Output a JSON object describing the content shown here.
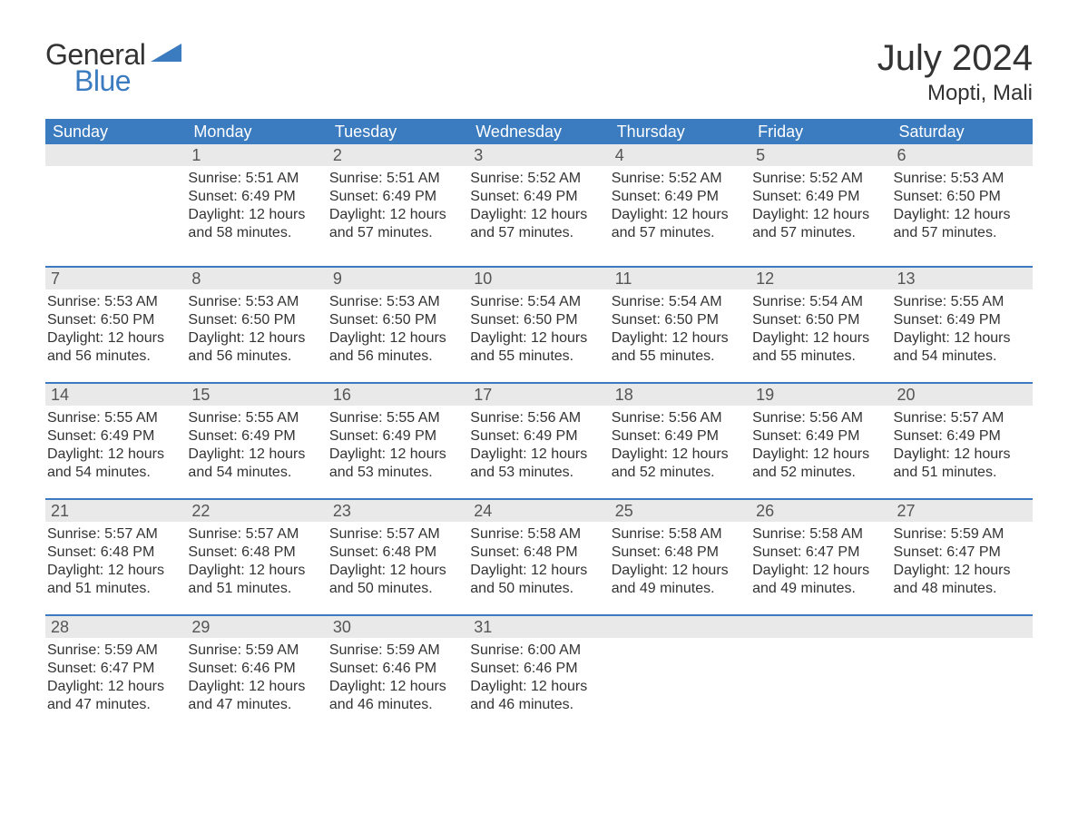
{
  "logo": {
    "text_general": "General",
    "text_blue": "Blue",
    "color_dark": "#333333",
    "color_blue": "#3b7bbf"
  },
  "title": {
    "month_year": "July 2024",
    "location": "Mopti, Mali"
  },
  "colors": {
    "header_bg": "#3b7bbf",
    "header_text": "#ffffff",
    "daynum_bg": "#e9e9e9",
    "daynum_text": "#555555",
    "body_text": "#333333",
    "week_divider": "#3b7bbf",
    "page_bg": "#ffffff"
  },
  "typography": {
    "title_fontsize": 40,
    "location_fontsize": 24,
    "header_fontsize": 18,
    "daynum_fontsize": 18,
    "body_fontsize": 16
  },
  "day_headers": [
    "Sunday",
    "Monday",
    "Tuesday",
    "Wednesday",
    "Thursday",
    "Friday",
    "Saturday"
  ],
  "weeks": [
    [
      null,
      {
        "n": "1",
        "sunrise": "Sunrise: 5:51 AM",
        "sunset": "Sunset: 6:49 PM",
        "daylight": "Daylight: 12 hours and 58 minutes."
      },
      {
        "n": "2",
        "sunrise": "Sunrise: 5:51 AM",
        "sunset": "Sunset: 6:49 PM",
        "daylight": "Daylight: 12 hours and 57 minutes."
      },
      {
        "n": "3",
        "sunrise": "Sunrise: 5:52 AM",
        "sunset": "Sunset: 6:49 PM",
        "daylight": "Daylight: 12 hours and 57 minutes."
      },
      {
        "n": "4",
        "sunrise": "Sunrise: 5:52 AM",
        "sunset": "Sunset: 6:49 PM",
        "daylight": "Daylight: 12 hours and 57 minutes."
      },
      {
        "n": "5",
        "sunrise": "Sunrise: 5:52 AM",
        "sunset": "Sunset: 6:49 PM",
        "daylight": "Daylight: 12 hours and 57 minutes."
      },
      {
        "n": "6",
        "sunrise": "Sunrise: 5:53 AM",
        "sunset": "Sunset: 6:50 PM",
        "daylight": "Daylight: 12 hours and 57 minutes."
      }
    ],
    [
      {
        "n": "7",
        "sunrise": "Sunrise: 5:53 AM",
        "sunset": "Sunset: 6:50 PM",
        "daylight": "Daylight: 12 hours and 56 minutes."
      },
      {
        "n": "8",
        "sunrise": "Sunrise: 5:53 AM",
        "sunset": "Sunset: 6:50 PM",
        "daylight": "Daylight: 12 hours and 56 minutes."
      },
      {
        "n": "9",
        "sunrise": "Sunrise: 5:53 AM",
        "sunset": "Sunset: 6:50 PM",
        "daylight": "Daylight: 12 hours and 56 minutes."
      },
      {
        "n": "10",
        "sunrise": "Sunrise: 5:54 AM",
        "sunset": "Sunset: 6:50 PM",
        "daylight": "Daylight: 12 hours and 55 minutes."
      },
      {
        "n": "11",
        "sunrise": "Sunrise: 5:54 AM",
        "sunset": "Sunset: 6:50 PM",
        "daylight": "Daylight: 12 hours and 55 minutes."
      },
      {
        "n": "12",
        "sunrise": "Sunrise: 5:54 AM",
        "sunset": "Sunset: 6:50 PM",
        "daylight": "Daylight: 12 hours and 55 minutes."
      },
      {
        "n": "13",
        "sunrise": "Sunrise: 5:55 AM",
        "sunset": "Sunset: 6:49 PM",
        "daylight": "Daylight: 12 hours and 54 minutes."
      }
    ],
    [
      {
        "n": "14",
        "sunrise": "Sunrise: 5:55 AM",
        "sunset": "Sunset: 6:49 PM",
        "daylight": "Daylight: 12 hours and 54 minutes."
      },
      {
        "n": "15",
        "sunrise": "Sunrise: 5:55 AM",
        "sunset": "Sunset: 6:49 PM",
        "daylight": "Daylight: 12 hours and 54 minutes."
      },
      {
        "n": "16",
        "sunrise": "Sunrise: 5:55 AM",
        "sunset": "Sunset: 6:49 PM",
        "daylight": "Daylight: 12 hours and 53 minutes."
      },
      {
        "n": "17",
        "sunrise": "Sunrise: 5:56 AM",
        "sunset": "Sunset: 6:49 PM",
        "daylight": "Daylight: 12 hours and 53 minutes."
      },
      {
        "n": "18",
        "sunrise": "Sunrise: 5:56 AM",
        "sunset": "Sunset: 6:49 PM",
        "daylight": "Daylight: 12 hours and 52 minutes."
      },
      {
        "n": "19",
        "sunrise": "Sunrise: 5:56 AM",
        "sunset": "Sunset: 6:49 PM",
        "daylight": "Daylight: 12 hours and 52 minutes."
      },
      {
        "n": "20",
        "sunrise": "Sunrise: 5:57 AM",
        "sunset": "Sunset: 6:49 PM",
        "daylight": "Daylight: 12 hours and 51 minutes."
      }
    ],
    [
      {
        "n": "21",
        "sunrise": "Sunrise: 5:57 AM",
        "sunset": "Sunset: 6:48 PM",
        "daylight": "Daylight: 12 hours and 51 minutes."
      },
      {
        "n": "22",
        "sunrise": "Sunrise: 5:57 AM",
        "sunset": "Sunset: 6:48 PM",
        "daylight": "Daylight: 12 hours and 51 minutes."
      },
      {
        "n": "23",
        "sunrise": "Sunrise: 5:57 AM",
        "sunset": "Sunset: 6:48 PM",
        "daylight": "Daylight: 12 hours and 50 minutes."
      },
      {
        "n": "24",
        "sunrise": "Sunrise: 5:58 AM",
        "sunset": "Sunset: 6:48 PM",
        "daylight": "Daylight: 12 hours and 50 minutes."
      },
      {
        "n": "25",
        "sunrise": "Sunrise: 5:58 AM",
        "sunset": "Sunset: 6:48 PM",
        "daylight": "Daylight: 12 hours and 49 minutes."
      },
      {
        "n": "26",
        "sunrise": "Sunrise: 5:58 AM",
        "sunset": "Sunset: 6:47 PM",
        "daylight": "Daylight: 12 hours and 49 minutes."
      },
      {
        "n": "27",
        "sunrise": "Sunrise: 5:59 AM",
        "sunset": "Sunset: 6:47 PM",
        "daylight": "Daylight: 12 hours and 48 minutes."
      }
    ],
    [
      {
        "n": "28",
        "sunrise": "Sunrise: 5:59 AM",
        "sunset": "Sunset: 6:47 PM",
        "daylight": "Daylight: 12 hours and 47 minutes."
      },
      {
        "n": "29",
        "sunrise": "Sunrise: 5:59 AM",
        "sunset": "Sunset: 6:46 PM",
        "daylight": "Daylight: 12 hours and 47 minutes."
      },
      {
        "n": "30",
        "sunrise": "Sunrise: 5:59 AM",
        "sunset": "Sunset: 6:46 PM",
        "daylight": "Daylight: 12 hours and 46 minutes."
      },
      {
        "n": "31",
        "sunrise": "Sunrise: 6:00 AM",
        "sunset": "Sunset: 6:46 PM",
        "daylight": "Daylight: 12 hours and 46 minutes."
      },
      null,
      null,
      null
    ]
  ]
}
